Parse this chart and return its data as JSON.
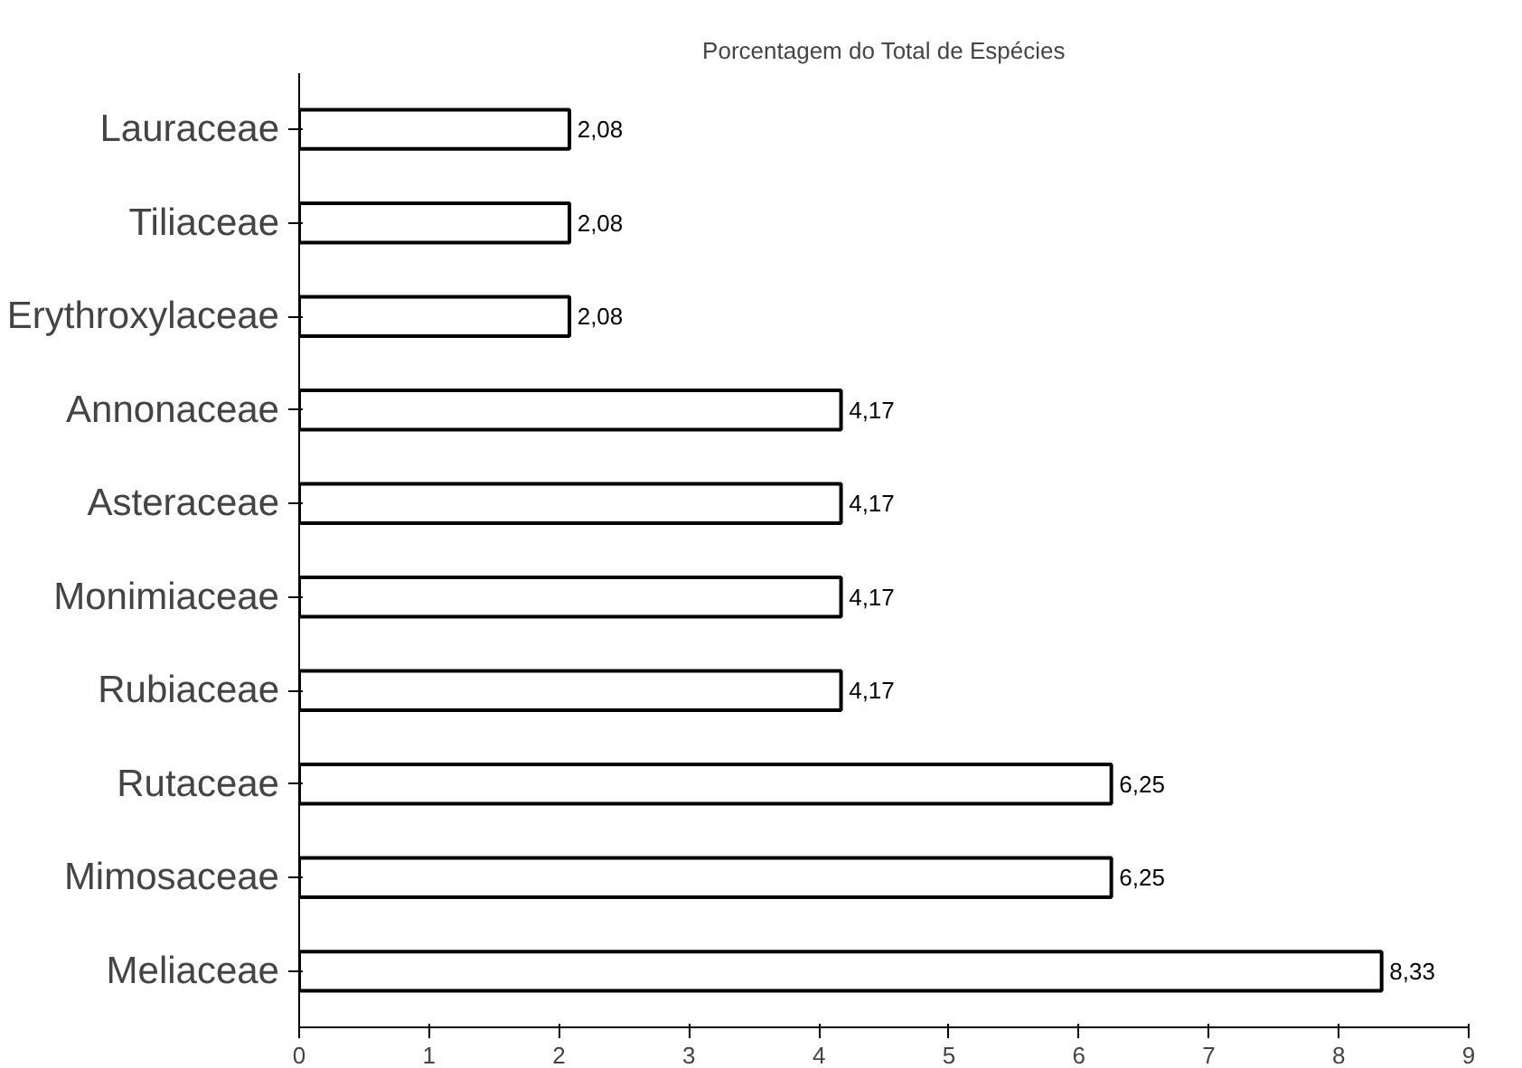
{
  "chart_data": {
    "type": "bar",
    "orientation": "horizontal",
    "title": "Porcentagem do Total de Espécies",
    "categories": [
      "Lauraceae",
      "Tiliaceae",
      "Erythroxylaceae",
      "Annonaceae",
      "Asteraceae",
      "Monimiaceae",
      "Rubiaceae",
      "Rutaceae",
      "Mimosaceae",
      "Meliaceae"
    ],
    "values": [
      2.08,
      2.08,
      2.08,
      4.17,
      4.17,
      4.17,
      4.17,
      6.25,
      6.25,
      8.33
    ],
    "value_labels": [
      "2,08",
      "2,08",
      "2,08",
      "4,17",
      "4,17",
      "4,17",
      "4,17",
      "6,25",
      "6,25",
      "8,33"
    ],
    "color": "#ffffff",
    "xlim": [
      0,
      9
    ],
    "xticks": [
      0,
      1,
      2,
      3,
      4,
      5,
      6,
      7,
      8,
      9
    ],
    "grid": false
  }
}
